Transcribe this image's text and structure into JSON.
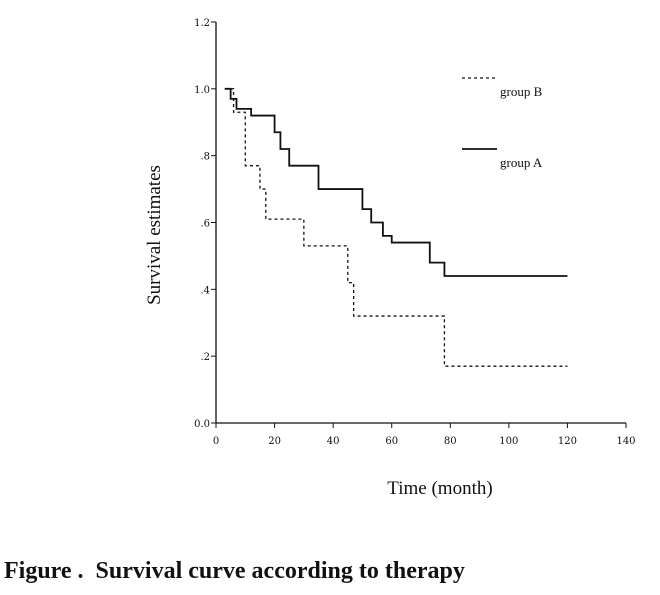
{
  "chart_data": {
    "type": "line",
    "step": true,
    "title": "",
    "xlabel": "Time (month)",
    "ylabel": "Survival estimates",
    "xlim": [
      0,
      140
    ],
    "ylim": [
      0.0,
      1.2
    ],
    "x_ticks": [
      0,
      20,
      40,
      60,
      80,
      100,
      120,
      140
    ],
    "x_tick_labels": [
      "0",
      "20",
      "40",
      "60",
      "80",
      "100",
      "120",
      "140"
    ],
    "y_ticks": [
      0.0,
      0.2,
      0.4,
      0.6,
      0.8,
      1.0,
      1.2
    ],
    "y_tick_labels": [
      "0.0",
      ".2",
      ".4",
      ".6",
      ".8",
      "1.0",
      "1.2"
    ],
    "legend_position": "top-right",
    "series": [
      {
        "name": "group B",
        "line_style": "dotted",
        "x": [
          3,
          6,
          10,
          15,
          17,
          20,
          30,
          45,
          47,
          78,
          120
        ],
        "y": [
          1.0,
          0.93,
          0.77,
          0.7,
          0.61,
          0.61,
          0.53,
          0.42,
          0.32,
          0.17,
          0.17
        ]
      },
      {
        "name": "group A",
        "line_style": "solid",
        "x": [
          3,
          5,
          7,
          12,
          17,
          20,
          22,
          25,
          35,
          50,
          53,
          57,
          60,
          73,
          78,
          120
        ],
        "y": [
          1.0,
          0.97,
          0.94,
          0.92,
          0.92,
          0.87,
          0.82,
          0.77,
          0.7,
          0.64,
          0.6,
          0.56,
          0.54,
          0.48,
          0.44,
          0.44
        ]
      }
    ]
  },
  "caption": "Figure .  Survival curve according to therapy"
}
